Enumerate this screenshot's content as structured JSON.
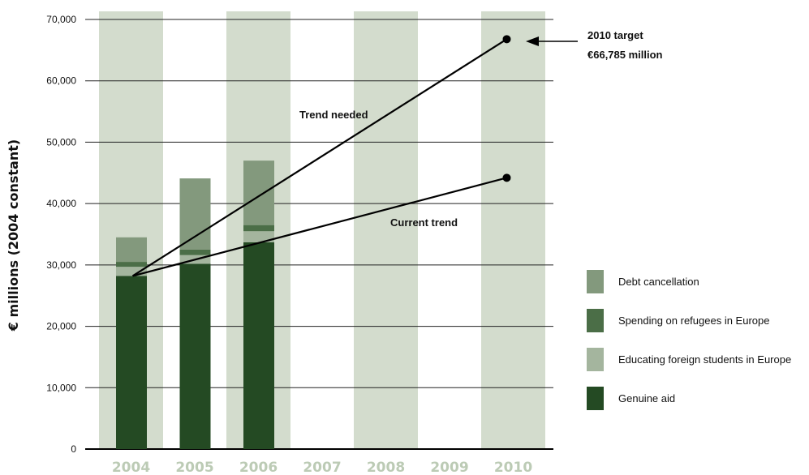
{
  "chart_data": {
    "type": "bar",
    "stacked": true,
    "ylabel": "€ millions (2004 constant)",
    "xlabel": "",
    "ylim": [
      0,
      70000
    ],
    "yticks": [
      0,
      10000,
      20000,
      30000,
      40000,
      50000,
      60000,
      70000
    ],
    "ytick_labels": [
      "0",
      "10,000",
      "20,000",
      "30,000",
      "40,000",
      "50,000",
      "60,000",
      "70,000"
    ],
    "categories": [
      "2004",
      "2005",
      "2006",
      "2007",
      "2008",
      "2009",
      "2010"
    ],
    "shaded_columns": [
      "2004",
      "2006",
      "2008",
      "2010"
    ],
    "grid": true,
    "series": [
      {
        "name": "Genuine aid",
        "color": "#244a23",
        "values": [
          28200,
          30200,
          33700,
          null,
          null,
          null,
          null
        ]
      },
      {
        "name": "Educating foreign students in Europe",
        "color": "#a4b59e",
        "values": [
          1500,
          1400,
          1800,
          null,
          null,
          null,
          null
        ]
      },
      {
        "name": "Spending on refugees in Europe",
        "color": "#4b6e47",
        "values": [
          800,
          900,
          1000,
          null,
          null,
          null,
          null
        ]
      },
      {
        "name": "Debt cancellation",
        "color": "#83997d",
        "values": [
          4000,
          11600,
          10500,
          null,
          null,
          null,
          null
        ]
      }
    ],
    "lines": [
      {
        "label": "Trend needed",
        "points": [
          [
            "2004",
            28200
          ],
          [
            "2010",
            66785
          ]
        ]
      },
      {
        "label": "Current trend",
        "points": [
          [
            "2004",
            28200
          ],
          [
            "2010",
            44200
          ]
        ]
      }
    ],
    "annotations": {
      "target_line1": "2010 target",
      "target_line2": "€66,785 million",
      "target_value": 66785
    },
    "legend_position": "right",
    "colors": {
      "column_shade": "#d3dccd",
      "year_label": "#bccbb5",
      "grid": "#222222"
    }
  }
}
